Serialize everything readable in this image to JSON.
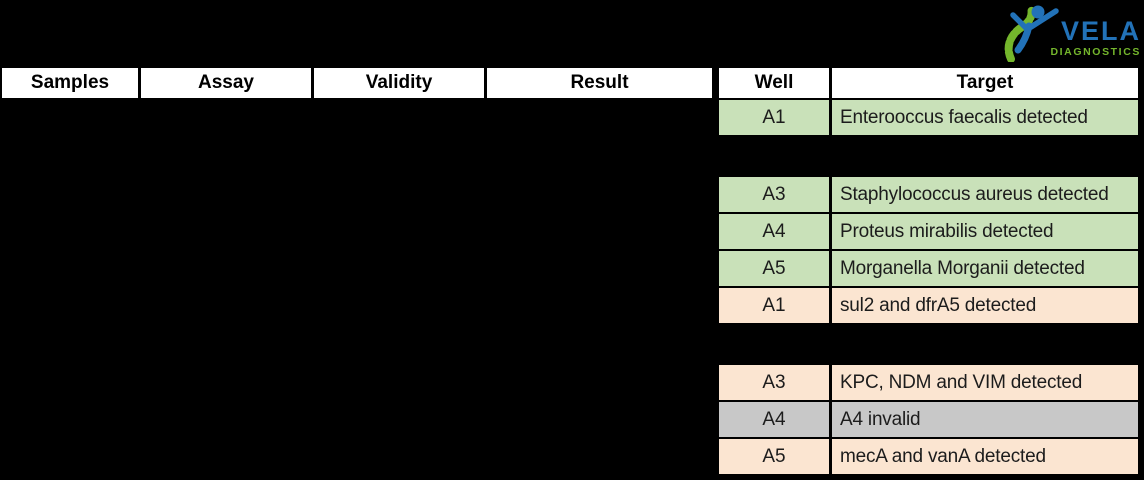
{
  "logo": {
    "brand": "VELA",
    "sub": "DIAGNOSTICS",
    "blue": "#2272b8",
    "green": "#74b62c"
  },
  "left_table": {
    "headers": [
      "Samples",
      "Assay",
      "Validity",
      "Result"
    ]
  },
  "right_table": {
    "headers": [
      "Well",
      "Target"
    ],
    "rows": [
      {
        "kind": "green",
        "well": "A1",
        "target": "Enterooccus faecalis detected"
      },
      {
        "kind": "hidden",
        "well": "",
        "target": ""
      },
      {
        "kind": "green",
        "well": "A3",
        "target": "Staphylococcus aureus detected"
      },
      {
        "kind": "green",
        "well": "A4",
        "target": "Proteus mirabilis detected"
      },
      {
        "kind": "green",
        "well": "A5",
        "target": "Morganella Morganii detected"
      },
      {
        "kind": "peach",
        "well": "A1",
        "target": "sul2 and dfrA5 detected"
      },
      {
        "kind": "hidden",
        "well": "",
        "target": ""
      },
      {
        "kind": "peach",
        "well": "A3",
        "target": "KPC, NDM and VIM detected"
      },
      {
        "kind": "gray",
        "well": "A4",
        "target": "A4 invalid"
      },
      {
        "kind": "peach",
        "well": "A5",
        "target": "mecA and vanA detected"
      }
    ]
  },
  "colors": {
    "background": "#000000",
    "header_bg": "#ffffff",
    "green": "#c9e1b9",
    "peach": "#fbe5d1",
    "gray": "#c8c8c8",
    "row_text": "#1c1c1c"
  }
}
